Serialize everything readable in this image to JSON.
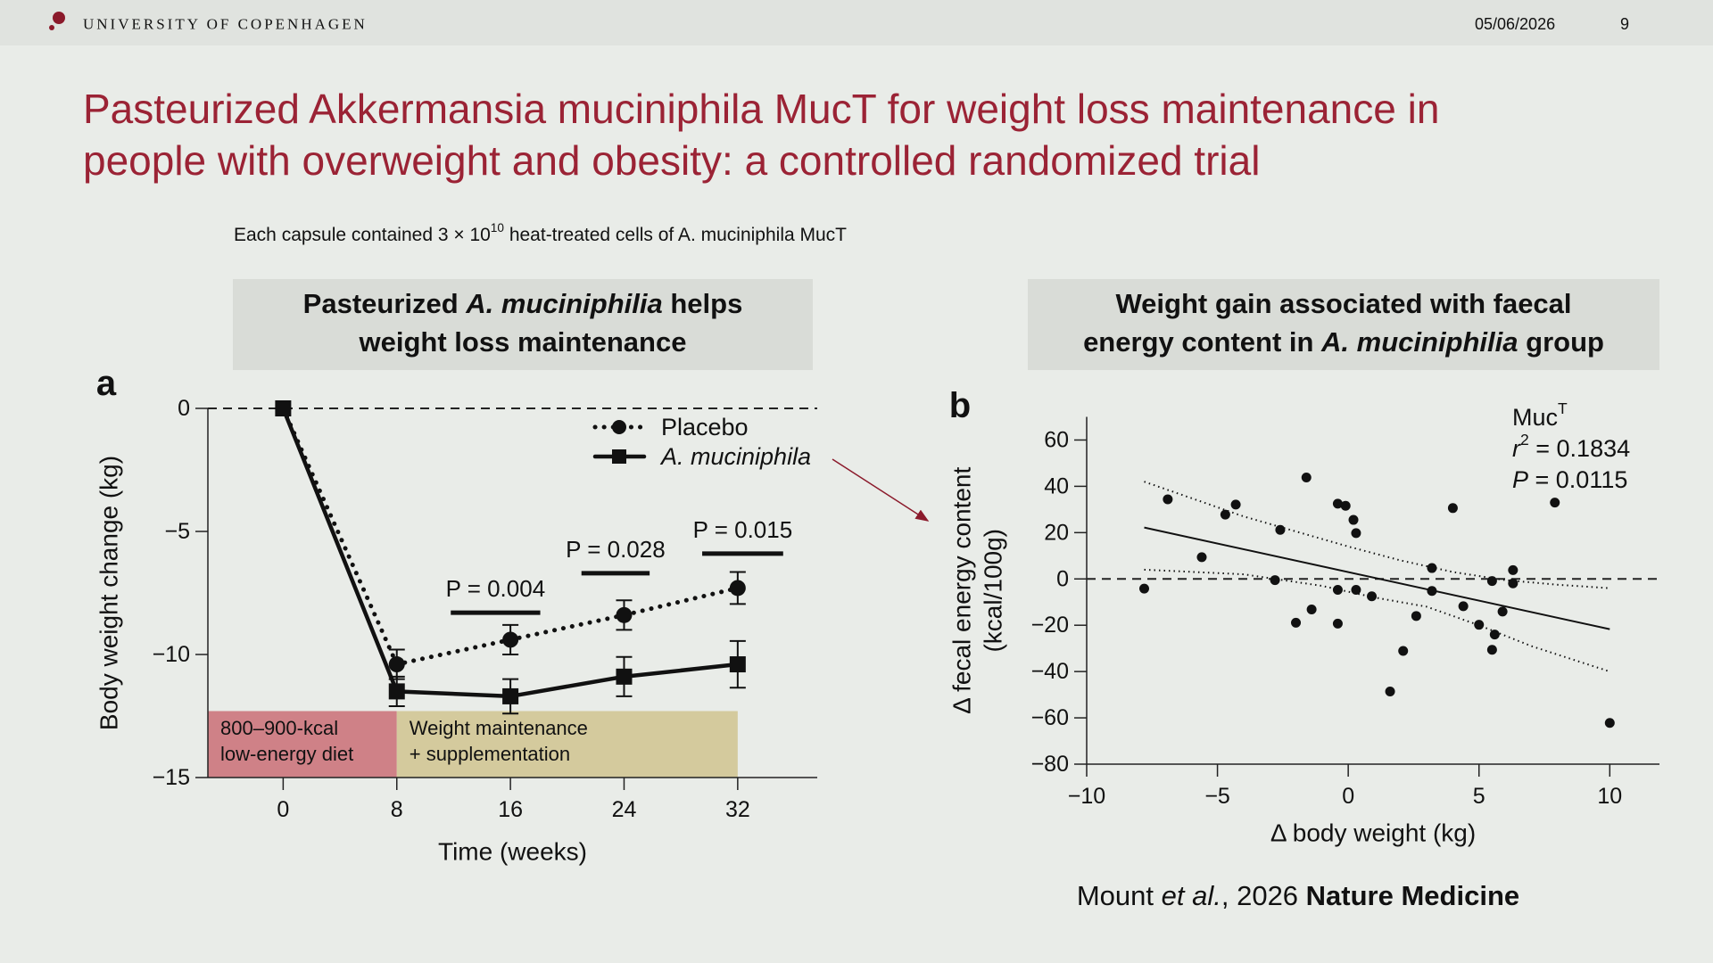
{
  "header": {
    "institution": "UNIVERSITY OF COPENHAGEN",
    "date": "05/06/2026",
    "page": "9"
  },
  "title": [
    "Pasteurized Akkermansia muciniphila MucT for weight loss maintenance in",
    "people with overweight and obesity: a controlled randomized trial"
  ],
  "subtitle": [
    {
      "text": "Each capsule contained 3 × 10"
    },
    {
      "text": "10",
      "sup": true
    },
    {
      "text": " heat-treated cells of A. muciniphila MucT"
    }
  ],
  "citation": [
    {
      "text": "Mount "
    },
    {
      "text": "et al.",
      "italic": true
    },
    {
      "text": ", 2026 "
    },
    {
      "text": "Nature Medicine",
      "bold": true
    }
  ],
  "chart_data": [
    {
      "type": "line",
      "panel": "a",
      "heading": [
        [
          {
            "text": "Pasteurized "
          },
          {
            "text": "A. muciniphilia",
            "italic": true
          },
          {
            "text": " helps"
          }
        ],
        [
          {
            "text": "weight loss maintenance"
          }
        ]
      ],
      "x_label": "Time (weeks)",
      "y_label": "Body weight change (kg)",
      "x": [
        0,
        8,
        16,
        24,
        32
      ],
      "xlim": [
        -5.3,
        37.6
      ],
      "xticks": [
        0,
        8,
        16,
        24,
        32
      ],
      "ylim": [
        -15,
        0
      ],
      "yticks": [
        0,
        {
          "value": -5,
          "label": "−5"
        },
        {
          "value": -10,
          "label": "−10"
        },
        {
          "value": -15,
          "label": "−15"
        }
      ],
      "zero_line": true,
      "legend": "top-right",
      "series": [
        {
          "name": "Placebo",
          "color": "#111111",
          "dash": "dotted",
          "marker": "circle",
          "values": [
            0,
            -10.4,
            -9.4,
            -8.4,
            -7.3
          ],
          "errors": [
            0,
            0.6,
            0.6,
            0.6,
            0.65
          ]
        },
        {
          "name": "A. muciniphila",
          "italic": true,
          "color": "#111111",
          "dash": "solid",
          "marker": "square",
          "values": [
            0,
            -11.5,
            -11.7,
            -10.9,
            -10.4
          ],
          "errors": [
            0,
            0.6,
            0.7,
            0.8,
            0.95
          ]
        }
      ],
      "significance": [
        {
          "label": "P = 0.004",
          "x": [
            11.8,
            18.1
          ],
          "y": -8.3
        },
        {
          "label": "P = 0.028",
          "x": [
            21,
            25.8
          ],
          "y": -6.7
        },
        {
          "label": "P = 0.015",
          "x": [
            29.5,
            35.2
          ],
          "y": -5.9
        }
      ],
      "phase_top": -12.3,
      "phases": [
        {
          "lines": [
            "800–900-kcal",
            "low-energy diet"
          ],
          "range": [
            -5.3,
            8
          ],
          "color": "#cf8187"
        },
        {
          "lines": [
            "Weight maintenance",
            "+ supplementation"
          ],
          "range": [
            8,
            32
          ],
          "color": "#d4ca9d"
        }
      ]
    },
    {
      "type": "scatter",
      "panel": "b",
      "heading": [
        [
          {
            "text": "Weight gain associated with faecal"
          }
        ],
        [
          {
            "text": "energy content in "
          },
          {
            "text": "A. muciniphilia",
            "italic": true
          },
          {
            "text": " group"
          }
        ]
      ],
      "x_label": "Δ body weight (kg)",
      "y_label": [
        "Δ fecal energy content",
        "(kcal/100g)"
      ],
      "x": [
        -7.8,
        -6.9,
        -5.6,
        -4.7,
        -4.3,
        -2.8,
        -2.6,
        -2.0,
        -1.6,
        -1.4,
        -0.4,
        -0.4,
        -0.4,
        -0.1,
        0.2,
        0.3,
        0.3,
        0.9,
        1.6,
        2.1,
        2.6,
        3.2,
        3.2,
        4.0,
        4.4,
        5.0,
        5.5,
        5.6,
        5.5,
        5.9,
        6.3,
        6.3,
        7.9,
        10.0
      ],
      "values": [
        -4.2,
        34.4,
        9.4,
        27.8,
        32.1,
        -0.5,
        21.2,
        -18.9,
        43.8,
        -13.2,
        32.5,
        -4.7,
        -19.3,
        31.6,
        25.5,
        -4.7,
        19.8,
        -7.5,
        -48.6,
        -31.1,
        -16.0,
        4.7,
        -5.2,
        30.6,
        -11.8,
        -19.8,
        -0.9,
        -24.0,
        -30.6,
        -14.1,
        3.8,
        -1.9,
        33.0,
        -62.2
      ],
      "color": "#111111",
      "xlim": [
        -10,
        11.9
      ],
      "xticks": [
        {
          "value": -10,
          "label": "−10"
        },
        {
          "value": -5,
          "label": "−5"
        },
        0,
        5,
        10
      ],
      "ylim": [
        -80,
        70
      ],
      "yticks": [
        60,
        40,
        20,
        0,
        {
          "value": -20,
          "label": "−20"
        },
        {
          "value": -40,
          "label": "−40"
        },
        {
          "value": -60,
          "label": "−60"
        },
        {
          "value": -80,
          "label": "−80"
        }
      ],
      "zero_line": true,
      "fit": {
        "x": [
          -7.8,
          10
        ],
        "y": [
          22.2,
          -21.7
        ]
      },
      "ci_upper": {
        "x": [
          -7.8,
          -4,
          0,
          2,
          4,
          6,
          8,
          10
        ],
        "y": [
          42,
          27,
          14,
          8,
          3,
          -0.5,
          -2.5,
          -4
        ]
      },
      "ci_lower": {
        "x": [
          -7.8,
          -4,
          -1,
          1,
          3,
          5,
          7,
          10
        ],
        "y": [
          4,
          2,
          -3,
          -8,
          -12,
          -20,
          -29,
          -40
        ]
      },
      "annotation": {
        "group": [
          {
            "text": "Muc"
          },
          {
            "text": "T",
            "sup": true
          }
        ],
        "r2": [
          {
            "text": "r",
            "italic": true
          },
          {
            "text": "2",
            "sup": true
          },
          {
            "text": " = 0.1834"
          }
        ],
        "p": [
          {
            "text": "P",
            "italic": true
          },
          {
            "text": " = 0.0115"
          }
        ]
      }
    }
  ]
}
